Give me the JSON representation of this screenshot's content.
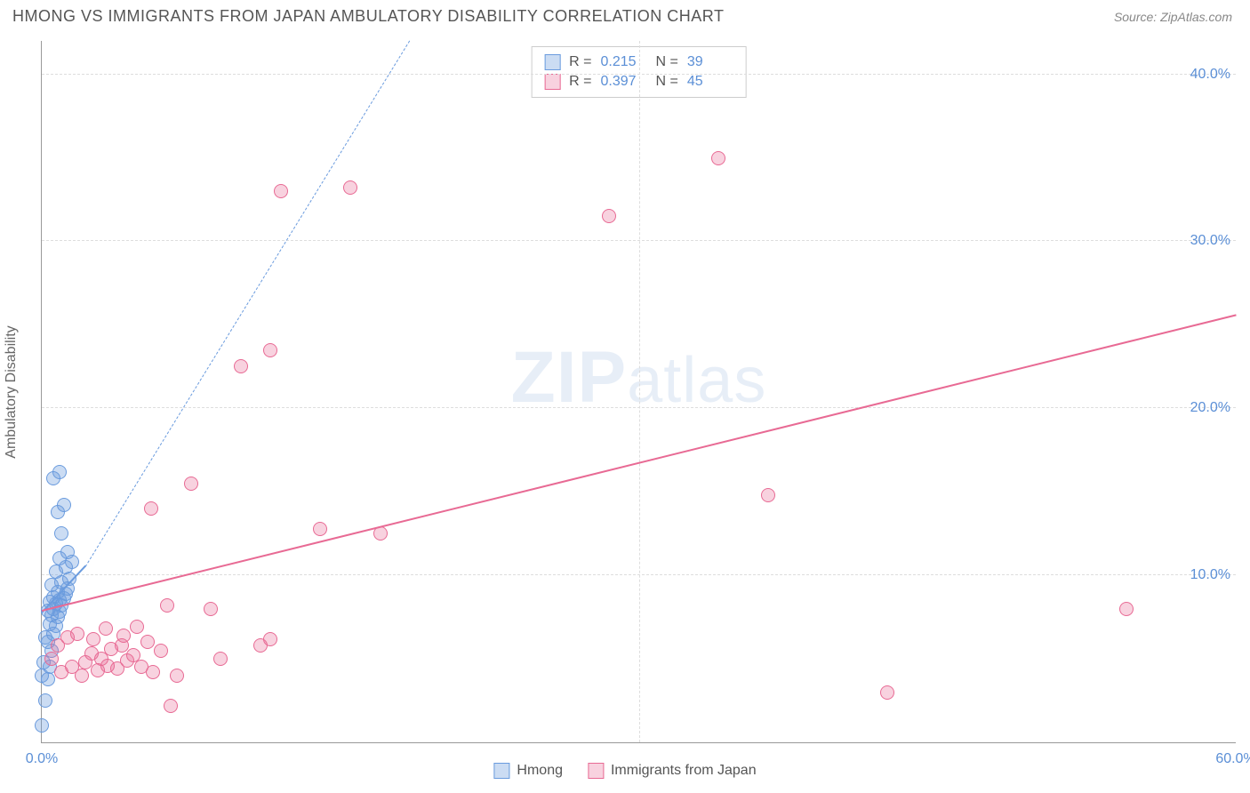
{
  "title": "HMONG VS IMMIGRANTS FROM JAPAN AMBULATORY DISABILITY CORRELATION CHART",
  "source": "Source: ZipAtlas.com",
  "ylabel": "Ambulatory Disability",
  "watermark_a": "ZIP",
  "watermark_b": "atlas",
  "chart": {
    "type": "scatter",
    "xlim": [
      0,
      60
    ],
    "ylim": [
      0,
      42
    ],
    "background_color": "#ffffff",
    "grid_color": "#dddddd",
    "axis_color": "#999999",
    "tick_color": "#5b8fd6",
    "tick_fontsize": 16,
    "point_radius": 8,
    "point_fill_opacity": 0.35,
    "yticks": [
      {
        "v": 10,
        "label": "10.0%"
      },
      {
        "v": 20,
        "label": "20.0%"
      },
      {
        "v": 30,
        "label": "30.0%"
      },
      {
        "v": 40,
        "label": "40.0%"
      }
    ],
    "xticks": [
      {
        "v": 0,
        "label": "0.0%"
      },
      {
        "v": 60,
        "label": "60.0%"
      }
    ],
    "xgrid": [
      30
    ],
    "series": [
      {
        "key": "hmong",
        "label": "Hmong",
        "color": "#6a9bde",
        "fill": "rgba(106,155,222,0.35)",
        "stroke": "#6a9bde",
        "R": "0.215",
        "N": "39",
        "trend": {
          "style": "solid",
          "x0": 0,
          "y0": 7.7,
          "x1": 2.2,
          "y1": 10.5
        },
        "trend_ext": {
          "style": "dash",
          "x0": 2.2,
          "y0": 10.5,
          "x1": 18.5,
          "y1": 42
        },
        "points": [
          [
            0.0,
            1.0
          ],
          [
            0.2,
            2.5
          ],
          [
            0.3,
            3.8
          ],
          [
            0.0,
            4.0
          ],
          [
            0.4,
            4.5
          ],
          [
            0.1,
            4.8
          ],
          [
            0.5,
            5.5
          ],
          [
            0.3,
            6.0
          ],
          [
            0.6,
            6.5
          ],
          [
            0.2,
            6.3
          ],
          [
            0.7,
            7.0
          ],
          [
            0.4,
            7.1
          ],
          [
            0.8,
            7.5
          ],
          [
            0.5,
            7.6
          ],
          [
            0.9,
            7.8
          ],
          [
            0.3,
            7.9
          ],
          [
            0.6,
            8.0
          ],
          [
            1.0,
            8.2
          ],
          [
            0.7,
            8.3
          ],
          [
            0.4,
            8.4
          ],
          [
            0.9,
            8.5
          ],
          [
            1.1,
            8.6
          ],
          [
            0.6,
            8.7
          ],
          [
            1.2,
            8.9
          ],
          [
            0.8,
            9.0
          ],
          [
            1.3,
            9.2
          ],
          [
            0.5,
            9.4
          ],
          [
            1.0,
            9.6
          ],
          [
            1.4,
            9.8
          ],
          [
            0.7,
            10.2
          ],
          [
            1.2,
            10.5
          ],
          [
            1.5,
            10.8
          ],
          [
            0.9,
            11.0
          ],
          [
            1.3,
            11.4
          ],
          [
            1.0,
            12.5
          ],
          [
            0.8,
            13.8
          ],
          [
            1.1,
            14.2
          ],
          [
            0.6,
            15.8
          ],
          [
            0.9,
            16.2
          ]
        ]
      },
      {
        "key": "japan",
        "label": "Immigrants from Japan",
        "color": "#e86a94",
        "fill": "rgba(232,106,148,0.30)",
        "stroke": "#e86a94",
        "R": "0.397",
        "N": "45",
        "trend": {
          "style": "solid",
          "x0": 0,
          "y0": 7.8,
          "x1": 60,
          "y1": 25.5
        },
        "points": [
          [
            1.0,
            4.2
          ],
          [
            1.5,
            4.5
          ],
          [
            2.0,
            4.0
          ],
          [
            2.2,
            4.8
          ],
          [
            2.5,
            5.3
          ],
          [
            2.8,
            4.3
          ],
          [
            3.0,
            5.0
          ],
          [
            3.3,
            4.6
          ],
          [
            3.5,
            5.6
          ],
          [
            3.8,
            4.4
          ],
          [
            4.0,
            5.8
          ],
          [
            4.3,
            4.9
          ],
          [
            4.6,
            5.2
          ],
          [
            5.0,
            4.5
          ],
          [
            5.3,
            6.0
          ],
          [
            5.6,
            4.2
          ],
          [
            6.0,
            5.5
          ],
          [
            6.5,
            2.2
          ],
          [
            6.8,
            4.0
          ],
          [
            6.3,
            8.2
          ],
          [
            5.5,
            14.0
          ],
          [
            7.5,
            15.5
          ],
          [
            8.5,
            8.0
          ],
          [
            9.0,
            5.0
          ],
          [
            10.0,
            22.5
          ],
          [
            11.5,
            23.5
          ],
          [
            11.0,
            5.8
          ],
          [
            11.5,
            6.2
          ],
          [
            12.0,
            33.0
          ],
          [
            14.0,
            12.8
          ],
          [
            15.5,
            33.2
          ],
          [
            17.0,
            12.5
          ],
          [
            28.5,
            31.5
          ],
          [
            34.0,
            35.0
          ],
          [
            36.5,
            14.8
          ],
          [
            42.5,
            3.0
          ],
          [
            54.5,
            8.0
          ],
          [
            1.8,
            6.5
          ],
          [
            2.6,
            6.2
          ],
          [
            3.2,
            6.8
          ],
          [
            4.1,
            6.4
          ],
          [
            4.8,
            6.9
          ],
          [
            0.8,
            5.8
          ],
          [
            1.3,
            6.3
          ],
          [
            0.5,
            5.0
          ]
        ]
      }
    ]
  },
  "legend_top": {
    "r_label": "R  =",
    "n_label": "N  ="
  },
  "legend_bottom": [
    {
      "series": 0
    },
    {
      "series": 1
    }
  ]
}
